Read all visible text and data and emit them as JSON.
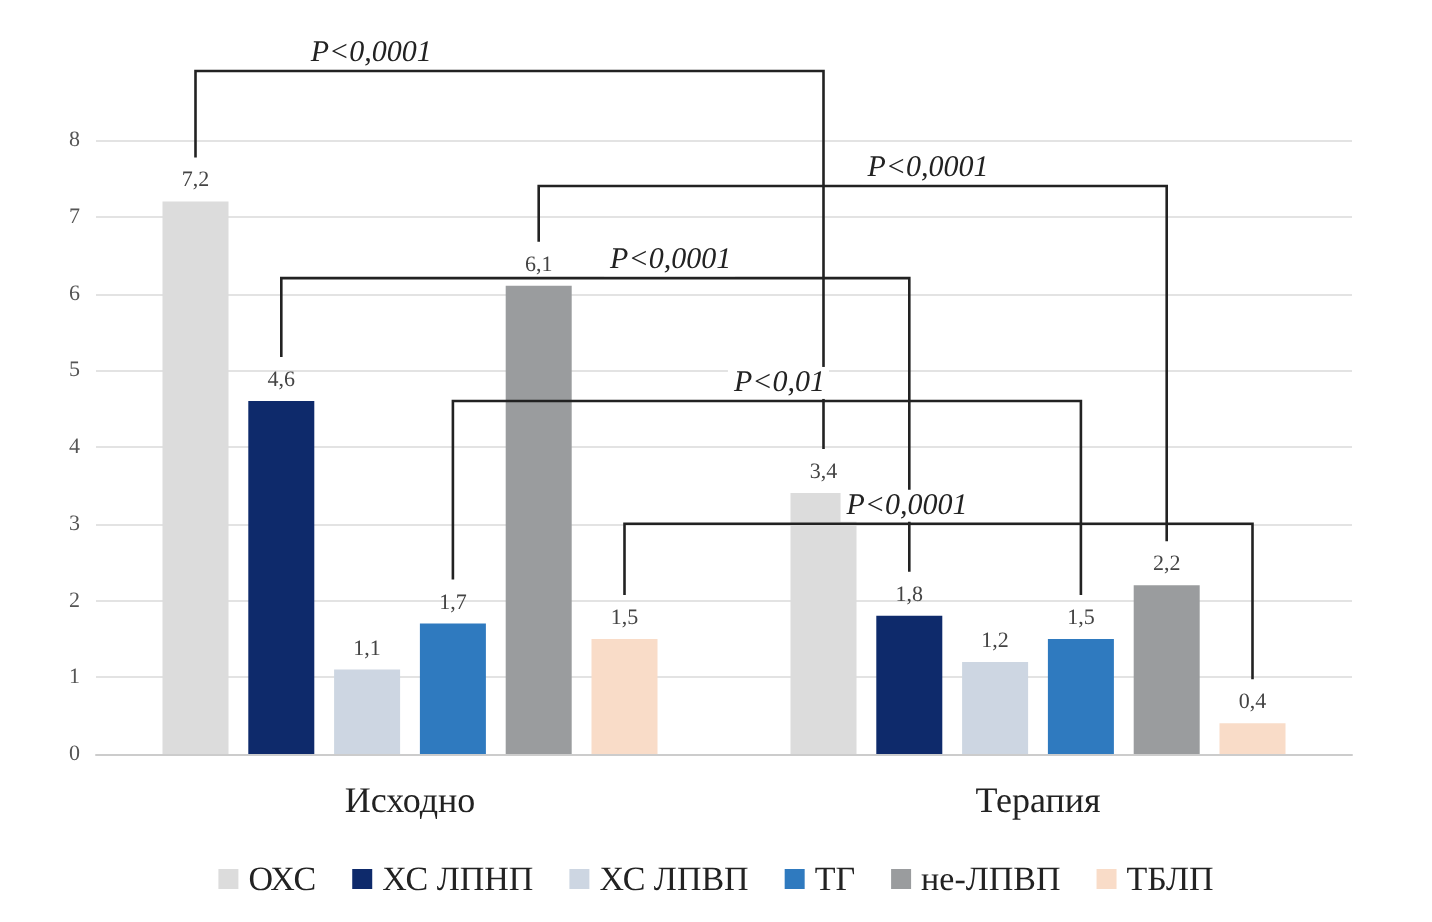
{
  "chart_data": {
    "type": "bar",
    "categories": [
      "Исходно",
      "Терапия"
    ],
    "series": [
      {
        "name": "ОХС",
        "color": "#dcdcdc",
        "values": [
          7.2,
          3.4
        ],
        "value_labels": [
          "7,2",
          "3,4"
        ]
      },
      {
        "name": "ХС ЛПНП",
        "color": "#0e2a6b",
        "values": [
          4.6,
          1.8
        ],
        "value_labels": [
          "4,6",
          "1,8"
        ]
      },
      {
        "name": "ХС ЛПВП",
        "color": "#cdd6e2",
        "values": [
          1.1,
          1.2
        ],
        "value_labels": [
          "1,1",
          "1,2"
        ]
      },
      {
        "name": "ТГ",
        "color": "#2f7abf",
        "values": [
          1.7,
          1.5
        ],
        "value_labels": [
          "1,7",
          "1,5"
        ]
      },
      {
        "name": "не-ЛПВП",
        "color": "#9a9c9e",
        "values": [
          6.1,
          2.2
        ],
        "value_labels": [
          "6,1",
          "2,2"
        ]
      },
      {
        "name": "ТБЛП",
        "color": "#f9dcc8",
        "values": [
          1.5,
          0.4
        ],
        "value_labels": [
          "1,5",
          "0,4"
        ]
      }
    ],
    "ylim": [
      0,
      8
    ],
    "yticks": [
      0,
      1,
      2,
      3,
      4,
      5,
      6,
      7,
      8
    ],
    "grid": "y",
    "legend": "bottom",
    "annotations": [
      "P<0,0001",
      "P<0,0001",
      "P<0,0001",
      "P<0,01",
      "P<0,0001"
    ]
  }
}
